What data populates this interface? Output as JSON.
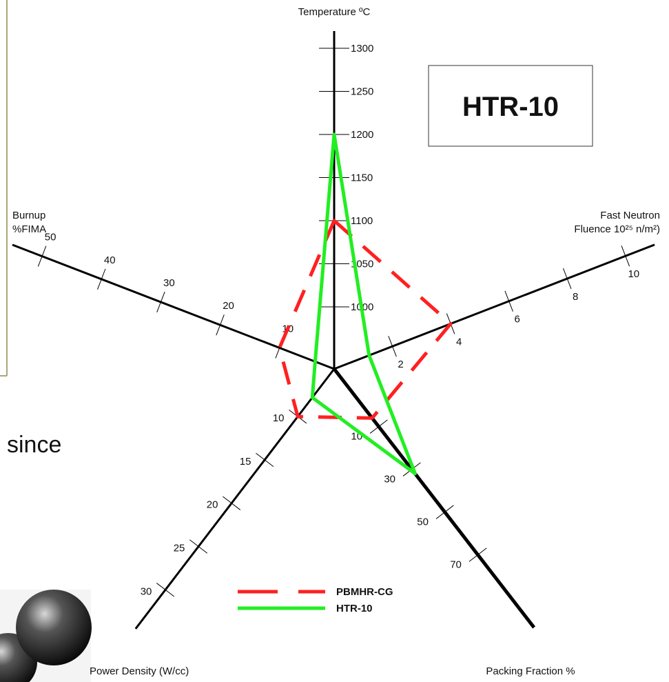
{
  "background_text": "since",
  "chart_data": {
    "type": "radar",
    "title": "HTR-10",
    "axes": [
      {
        "label": [
          "Temperature ºC"
        ],
        "lim": [
          928,
          1320
        ],
        "ticks": [
          1000,
          1050,
          1100,
          1150,
          1200,
          1250,
          1300
        ]
      },
      {
        "label": [
          "Fast Neutron",
          "Fluence 10²⁵ n/m²)"
        ],
        "lim": [
          0,
          11
        ],
        "ticks": [
          2,
          4,
          6,
          8,
          10
        ]
      },
      {
        "label": [
          "Packing Fraction %"
        ],
        "lim": [
          -17,
          104
        ],
        "ticks": [
          10,
          30,
          50,
          70
        ]
      },
      {
        "label": [
          "Power Density (W/cc)"
        ],
        "lim": [
          4.5,
          34.5
        ],
        "ticks": [
          10,
          15,
          20,
          25,
          30
        ]
      },
      {
        "label": [
          "Burnup",
          "%FIMA"
        ],
        "lim": [
          0.8,
          55
        ],
        "ticks": [
          10,
          20,
          30,
          40,
          50
        ]
      }
    ],
    "series": [
      {
        "name": "PBMHR-CG",
        "color": "#ff2020",
        "line_style": "dashed",
        "values": [
          1100,
          4,
          6,
          10,
          10
        ]
      },
      {
        "name": "HTR-10",
        "color": "#22ee22",
        "line_style": "solid",
        "values": [
          1200,
          1.2,
          32,
          7.8,
          4
        ]
      }
    ]
  }
}
